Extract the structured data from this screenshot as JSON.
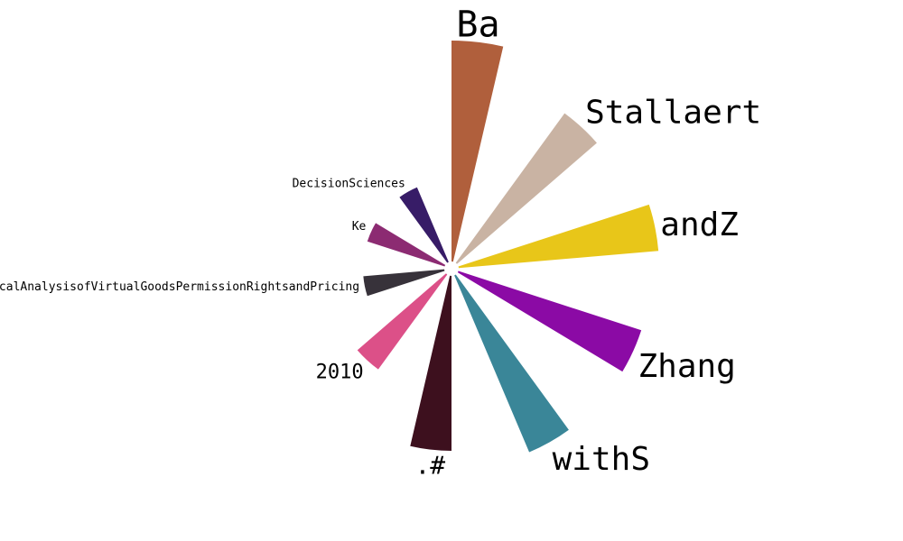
{
  "chart_data": {
    "type": "polar_bar",
    "title": "",
    "categories": [
      "Ba",
      "Stallaert",
      "andZ",
      "Zhang",
      "withS",
      ".#",
      "2010",
      "AnEmpiricalAnalysisofVirtualGoodsPermissionRightsandPricing",
      "Ke",
      "DecisionSciences"
    ],
    "values": [
      245,
      205,
      222,
      213,
      213,
      194,
      130,
      90,
      90,
      90
    ],
    "colors": [
      "#b05f3c",
      "#c9b3a3",
      "#e8c619",
      "#8b0aa5",
      "#3a8698",
      "#3d101e",
      "#dc5088",
      "#37323a",
      "#8c2b72",
      "#371c67"
    ],
    "label_font_sizes": [
      40,
      36,
      36,
      36,
      36,
      28,
      22,
      13,
      13,
      13
    ],
    "direction": "clockwise",
    "start": "top",
    "grid": false,
    "legend": "none"
  }
}
